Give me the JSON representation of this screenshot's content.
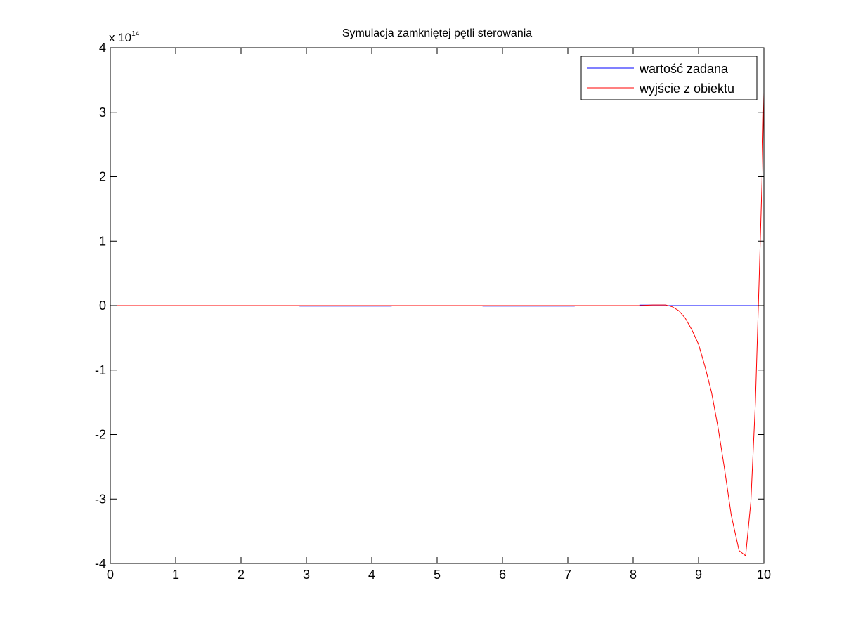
{
  "chart_data": {
    "type": "line",
    "title": "Symulacja zamkniętej pętli sterowania",
    "xlabel": "",
    "ylabel": "",
    "y_scale_label": {
      "base": "x 10",
      "exponent": "14"
    },
    "xlim": [
      0,
      10
    ],
    "ylim": [
      -4,
      4
    ],
    "x_ticks": [
      0,
      1,
      2,
      3,
      4,
      5,
      6,
      7,
      8,
      9,
      10
    ],
    "y_ticks": [
      -4,
      -3,
      -2,
      -1,
      0,
      1,
      2,
      3,
      4
    ],
    "grid": false,
    "legend_position": "top-right",
    "series": [
      {
        "name": "wartość zadana",
        "color": "#0000ff",
        "points": [
          [
            0,
            0
          ],
          [
            2.9,
            0
          ],
          [
            2.9,
            -0.008
          ],
          [
            4.3,
            -0.008
          ],
          [
            4.3,
            0
          ],
          [
            5.7,
            0
          ],
          [
            5.7,
            -0.008
          ],
          [
            7.1,
            -0.008
          ],
          [
            7.1,
            0
          ],
          [
            8.1,
            0
          ],
          [
            8.1,
            0.008
          ],
          [
            8.5,
            0.008
          ],
          [
            8.5,
            0
          ],
          [
            10,
            0
          ]
        ]
      },
      {
        "name": "wyjście z obiektu",
        "color": "#ff0000",
        "points": [
          [
            0,
            0
          ],
          [
            8.1,
            0
          ],
          [
            8.3,
            0.01
          ],
          [
            8.5,
            0.01
          ],
          [
            8.6,
            -0.02
          ],
          [
            8.7,
            -0.08
          ],
          [
            8.8,
            -0.2
          ],
          [
            8.9,
            -0.38
          ],
          [
            9.0,
            -0.6
          ],
          [
            9.1,
            -0.95
          ],
          [
            9.2,
            -1.35
          ],
          [
            9.3,
            -1.9
          ],
          [
            9.4,
            -2.55
          ],
          [
            9.5,
            -3.25
          ],
          [
            9.62,
            -3.8
          ],
          [
            9.72,
            -3.88
          ],
          [
            9.8,
            -3.05
          ],
          [
            9.87,
            -1.5
          ],
          [
            9.93,
            0.5
          ],
          [
            9.97,
            1.9
          ],
          [
            10.0,
            3.3
          ]
        ]
      }
    ]
  }
}
